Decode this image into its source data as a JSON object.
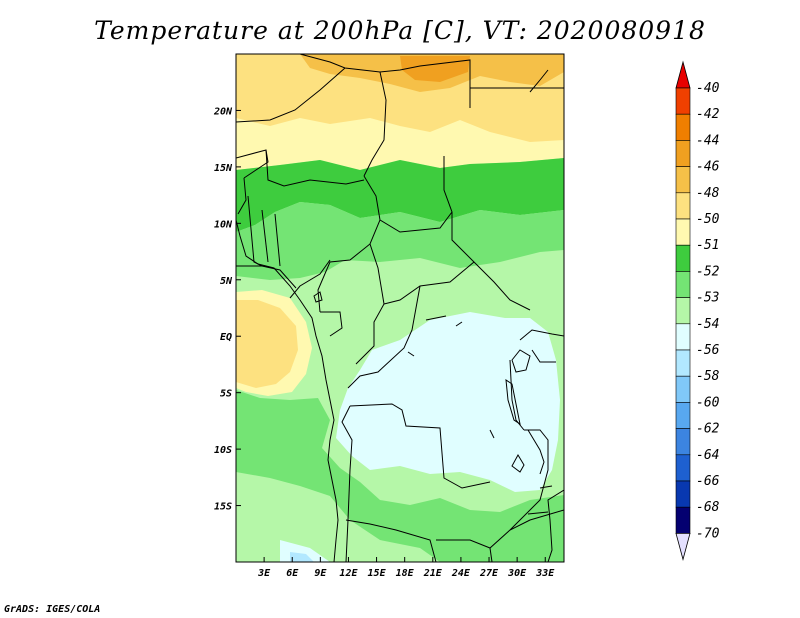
{
  "title": "Temperature at 200hPa [C], VT: 2020080918",
  "credit": "GrADS: IGES/COLA",
  "map": {
    "lon_labels": [
      "3E",
      "6E",
      "9E",
      "12E",
      "15E",
      "18E",
      "21E",
      "24E",
      "27E",
      "30E",
      "33E"
    ],
    "lat_labels": [
      "20N",
      "15N",
      "10N",
      "5N",
      "EQ",
      "5S",
      "10S",
      "15S"
    ],
    "lon_range": [
      0,
      35
    ],
    "lat_range": [
      -20,
      25
    ]
  },
  "colors": {
    "c-40": "#e80000",
    "c-42": "#f04000",
    "c-44": "#f07f00",
    "c-46": "#f0a020",
    "c-48": "#f5c048",
    "c-50": "#fde180",
    "c-51": "#fff9b0",
    "c-52": "#3ecc3e",
    "c-53": "#74e474",
    "c-54": "#b5f7a8",
    "c-56": "#e0feff",
    "c-58": "#b2e8ff",
    "c-60": "#80c8f8",
    "c-62": "#58a8f0",
    "c-64": "#3c84e0",
    "c-66": "#1e60d0",
    "c-68": "#0838b0",
    "c-70": "#040070",
    "below": "#e4e0ff"
  },
  "legend": {
    "top_color": "#e80000",
    "bottom_color": "#e4e0ff",
    "bins": [
      {
        "label": "-40",
        "color": "#f04000"
      },
      {
        "label": "-42",
        "color": "#f07f00"
      },
      {
        "label": "-44",
        "color": "#f0a020"
      },
      {
        "label": "-46",
        "color": "#f5c048"
      },
      {
        "label": "-48",
        "color": "#fde180"
      },
      {
        "label": "-50",
        "color": "#fff9b0"
      },
      {
        "label": "-51",
        "color": "#3ecc3e"
      },
      {
        "label": "-52",
        "color": "#74e474"
      },
      {
        "label": "-53",
        "color": "#b5f7a8"
      },
      {
        "label": "-54",
        "color": "#e0feff"
      },
      {
        "label": "-56",
        "color": "#b2e8ff"
      },
      {
        "label": "-58",
        "color": "#80c8f8"
      },
      {
        "label": "-60",
        "color": "#58a8f0"
      },
      {
        "label": "-62",
        "color": "#3c84e0"
      },
      {
        "label": "-64",
        "color": "#1e60d0"
      },
      {
        "label": "-66",
        "color": "#0838b0"
      },
      {
        "label": "-68",
        "color": "#040070"
      }
    ],
    "end_label": "-70"
  }
}
